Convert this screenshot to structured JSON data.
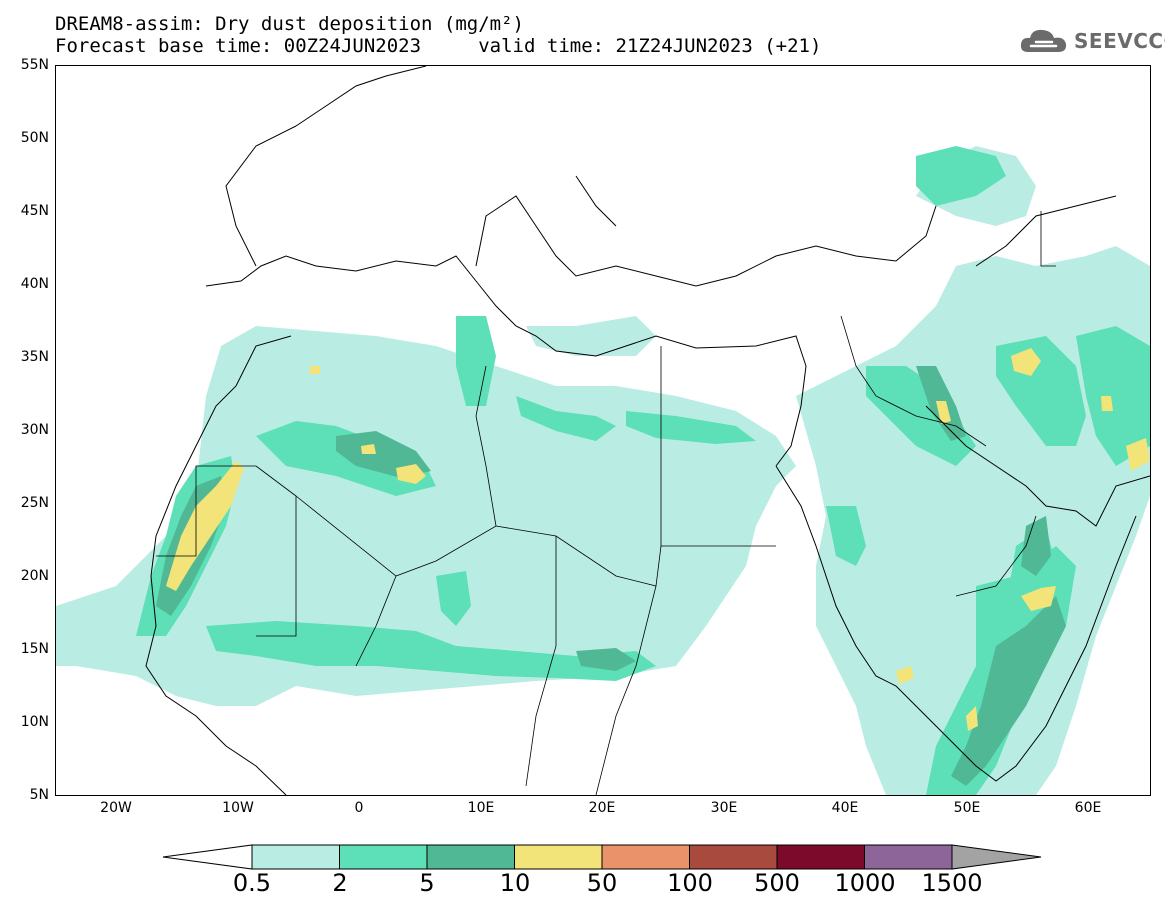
{
  "header": {
    "title_line1": "DREAM8-assim: Dry dust deposition (mg/m²)",
    "title_line2": "Forecast base time: 00Z24JUN2023     valid time: 21Z24JUN2023 (+21)"
  },
  "logo": {
    "text": "SEEVCCC",
    "icon": "cloud-icon"
  },
  "map": {
    "region": "North Africa, Middle East and Europe",
    "lon_range": [
      -25,
      65
    ],
    "lat_range": [
      5,
      55
    ],
    "latitude_labels": [
      "55N",
      "50N",
      "45N",
      "40N",
      "35N",
      "30N",
      "25N",
      "20N",
      "15N",
      "10N",
      "5N"
    ],
    "longitude_labels": [
      "20W",
      "10W",
      "0",
      "10E",
      "20E",
      "30E",
      "40E",
      "50E",
      "60E"
    ]
  },
  "legend": {
    "thresholds": [
      "0.5",
      "2",
      "5",
      "10",
      "50",
      "100",
      "500",
      "1000",
      "1500"
    ],
    "colors": {
      "under": "#ffffff",
      "bins": [
        "#b9ede4",
        "#5ddfb7",
        "#50b894",
        "#f3e479",
        "#ea926a",
        "#a84a3e",
        "#7c0b2b",
        "#8d6598"
      ],
      "over": "#a3a3a3"
    }
  }
}
